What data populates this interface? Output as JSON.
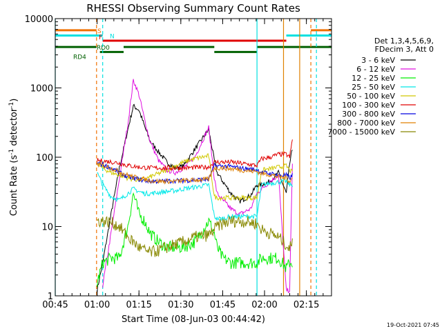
{
  "chart_data": {
    "type": "line",
    "title": "RHESSI Observing Summary Count Rates",
    "xlabel": "Start Time (08-Jun-03 00:44:42)",
    "ylabel_main": "Count Rate (s",
    "ylabel_sup1": "-1",
    "ylabel_mid": " detector",
    "ylabel_sup2": "-1",
    "ylabel_end": ")",
    "footer": "19-Oct-2021 07:45",
    "y_scale": "log",
    "ylim": [
      1,
      10000
    ],
    "xlim_minutes": [
      0,
      99
    ],
    "x_ticks": [
      {
        "label": "00:45",
        "min": 0
      },
      {
        "label": "01:00",
        "min": 15
      },
      {
        "label": "01:15",
        "min": 30
      },
      {
        "label": "01:30",
        "min": 45
      },
      {
        "label": "01:45",
        "min": 60
      },
      {
        "label": "02:00",
        "min": 75
      },
      {
        "label": "02:15",
        "min": 90
      }
    ],
    "y_ticks": [
      {
        "label": "1",
        "v": 1
      },
      {
        "label": "10",
        "v": 10
      },
      {
        "label": "100",
        "v": 100
      },
      {
        "label": "1000",
        "v": 1000
      },
      {
        "label": "10000",
        "v": 10000
      }
    ],
    "legend": {
      "placement": "right",
      "header": [
        "Det 1,3,4,5,6,9,",
        "FDecim 3, Att 0"
      ],
      "entries": [
        {
          "label": "3 - 6 keV",
          "color": "#000000"
        },
        {
          "label": "6 - 12 keV",
          "color": "#e010e0"
        },
        {
          "label": "12 - 25 keV",
          "color": "#00ee00"
        },
        {
          "label": "25 - 50 keV",
          "color": "#00e8e8"
        },
        {
          "label": "50 - 100 keV",
          "color": "#d0c800"
        },
        {
          "label": "100 - 300 keV",
          "color": "#e00000"
        },
        {
          "label": "300 - 800 keV",
          "color": "#0000e0"
        },
        {
          "label": "800 - 7000 keV",
          "color": "#e08000"
        },
        {
          "label": "7000 - 15000 keV",
          "color": "#888800"
        }
      ]
    },
    "flag_bars": [
      {
        "label": "S",
        "color": "#f07000",
        "v": 6800,
        "segments": [
          [
            0,
            14.8
          ],
          [
            91.6,
            99
          ]
        ]
      },
      {
        "label": "N",
        "color": "#00e0e0",
        "v": 5700,
        "segments": [
          [
            0,
            17
          ],
          [
            82.8,
            99
          ]
        ]
      },
      {
        "label": "F",
        "color": "#e00000",
        "v": 4800,
        "segments": [
          [
            17,
            82.8
          ]
        ]
      },
      {
        "label": "RD0",
        "color": "#006000",
        "v": 3900,
        "segments": [
          [
            0,
            14.8
          ],
          [
            24.5,
            57
          ],
          [
            72.3,
            99
          ]
        ]
      },
      {
        "label": "RD4",
        "color": "#006000",
        "v": 3300,
        "segments": [
          [
            16,
            24.5
          ],
          [
            57,
            72.3
          ]
        ]
      }
    ],
    "vertical_lines": [
      {
        "min": 0,
        "color": "#00e0e0",
        "style": "solid"
      },
      {
        "min": 14.8,
        "color": "#f07000",
        "style": "dashed"
      },
      {
        "min": 17,
        "color": "#00e0e0",
        "style": "dashed"
      },
      {
        "min": 72.3,
        "color": "#00e0e0",
        "style": "solid"
      },
      {
        "min": 81.8,
        "color": "#e08000",
        "style": "solid"
      },
      {
        "min": 87.6,
        "color": "#e08000",
        "style": "solid"
      },
      {
        "min": 91.6,
        "color": "#f07000",
        "style": "dashed"
      },
      {
        "min": 93.6,
        "color": "#00e0e0",
        "style": "dashed"
      }
    ],
    "x_minutes": [
      15,
      17,
      20,
      23,
      26,
      28,
      30,
      32,
      34,
      37,
      40,
      43,
      46,
      50,
      55,
      57,
      58,
      60,
      63,
      66,
      70,
      72.3,
      74,
      77,
      80,
      82.8,
      84,
      85
    ],
    "series": [
      {
        "name": "3 - 6 keV",
        "color": "#000000",
        "values": [
          1.2,
          3,
          15,
          70,
          250,
          550,
          480,
          280,
          170,
          120,
          85,
          70,
          75,
          130,
          250,
          90,
          60,
          45,
          30,
          23,
          28,
          40,
          40,
          45,
          60,
          30,
          80,
          130
        ]
      },
      {
        "name": "6 - 12 keV",
        "color": "#e010e0",
        "values": [
          null,
          1.4,
          8,
          50,
          300,
          1300,
          800,
          350,
          170,
          90,
          65,
          60,
          70,
          100,
          270,
          50,
          30,
          24,
          18,
          15,
          18,
          30,
          35,
          45,
          55,
          1.2,
          1.2,
          80
        ]
      },
      {
        "name": "12 - 25 keV",
        "color": "#00ee00",
        "values": [
          1.5,
          3,
          3.5,
          3.5,
          10,
          30,
          15,
          12,
          8,
          6,
          5,
          5,
          5,
          6,
          12,
          8,
          5,
          3.5,
          3,
          3,
          3,
          3,
          3.5,
          3.5,
          3.5,
          2.5,
          3,
          3
        ]
      },
      {
        "name": "25 - 50 keV",
        "color": "#00e8e8",
        "values": [
          60,
          40,
          27,
          24,
          30,
          35,
          32,
          30,
          30,
          31,
          32,
          33,
          35,
          37,
          40,
          14,
          13,
          13,
          14,
          14,
          14,
          14,
          40,
          42,
          44,
          45,
          40,
          40
        ]
      },
      {
        "name": "50 - 100 keV",
        "color": "#d0c800",
        "values": [
          80,
          70,
          60,
          55,
          50,
          48,
          47,
          48,
          52,
          58,
          65,
          75,
          85,
          95,
          105,
          27,
          26,
          26,
          26,
          26,
          26,
          26,
          65,
          68,
          72,
          75,
          65,
          60
        ]
      },
      {
        "name": "100 - 300 keV",
        "color": "#e00000",
        "values": [
          90,
          88,
          86,
          82,
          76,
          74,
          72,
          71,
          70,
          70,
          70,
          70,
          70,
          71,
          72,
          85,
          85,
          85,
          85,
          82,
          78,
          76,
          95,
          100,
          110,
          110,
          100,
          180
        ]
      },
      {
        "name": "300 - 800 keV",
        "color": "#0000e0",
        "values": [
          82,
          78,
          70,
          60,
          52,
          50,
          48,
          46,
          45,
          45,
          45,
          46,
          46,
          47,
          48,
          75,
          75,
          74,
          73,
          70,
          67,
          66,
          60,
          58,
          55,
          55,
          50,
          55
        ]
      },
      {
        "name": "800 - 7000 keV",
        "color": "#e08000",
        "values": [
          80,
          76,
          70,
          62,
          55,
          52,
          50,
          48,
          46,
          45,
          45,
          45,
          46,
          47,
          48,
          70,
          70,
          70,
          68,
          66,
          63,
          62,
          58,
          56,
          52,
          50,
          45,
          50
        ]
      },
      {
        "name": "7000 - 15000 keV",
        "color": "#888800",
        "values": [
          12,
          12,
          11.5,
          10,
          7,
          6,
          5,
          4.5,
          4.2,
          4.5,
          5,
          5.5,
          6,
          7,
          7.5,
          9,
          10,
          11,
          12,
          12,
          11.5,
          11,
          9,
          8,
          7,
          5.5,
          4.5,
          7
        ]
      }
    ]
  }
}
